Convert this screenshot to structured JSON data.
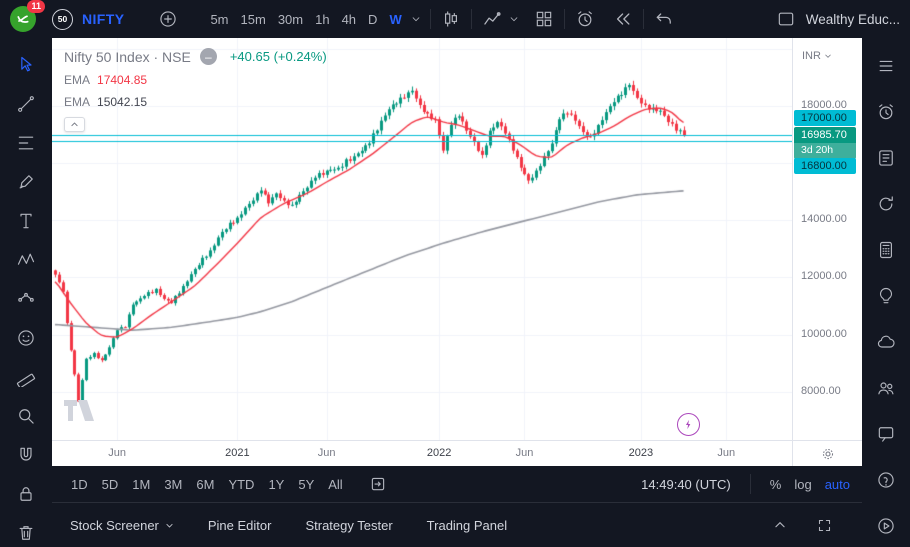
{
  "app": {
    "account_name": "Wealthy Educ...",
    "title_symbol": "NIFTY",
    "symbol_badge": "50",
    "logo_badge_count": "11"
  },
  "topbar": {
    "timeframes": [
      "5m",
      "15m",
      "30m",
      "1h",
      "4h",
      "D",
      "W"
    ],
    "active_timeframe": "W"
  },
  "left_toolbar": {
    "tools": [
      "cursor",
      "trend-line",
      "fib-retracement",
      "brush",
      "text",
      "xabcd-pattern",
      "forecast",
      "emoji",
      "ruler",
      "zoom",
      "magnet",
      "lock",
      "trash"
    ],
    "active_tool": "cursor"
  },
  "right_sidebar": {
    "panels": [
      "watchlist",
      "alerts",
      "hotlists",
      "refresh",
      "dom",
      "ideas",
      "chat-cloud",
      "community",
      "messages",
      "help",
      "play"
    ]
  },
  "legend": {
    "title": "Nifty 50 Index · NSE",
    "change_text": "+40.65 (+0.24%)",
    "hide_glyph": "–"
  },
  "price_axis": {
    "currency_label": "INR"
  },
  "bottom_toolbar": {
    "ranges": [
      "1D",
      "5D",
      "1M",
      "3M",
      "6M",
      "YTD",
      "1Y",
      "5Y",
      "All"
    ],
    "clock": "14:49:40 (UTC)",
    "percent_label": "%",
    "log_label": "log",
    "auto_label": "auto"
  },
  "bottom_panel": {
    "items": [
      {
        "label": "Stock Screener",
        "chevron": true
      },
      {
        "label": "Pine Editor",
        "chevron": false
      },
      {
        "label": "Strategy Tester",
        "chevron": false
      },
      {
        "label": "Trading Panel",
        "chevron": false
      }
    ]
  },
  "colors": {
    "accent_blue": "#2962ff",
    "up_green": "#089981",
    "down_red": "#f23645",
    "h_line": "#00bcd4",
    "toolbar_bg": "#131722",
    "chart_bg": "#ffffff",
    "boost_purple": "#ab47bc"
  },
  "chart_data": {
    "type": "candlestick",
    "symbol": "Nifty 50 Index",
    "exchange": "NSE",
    "interval": "W",
    "ylim": [
      6300,
      20400
    ],
    "weeks": 162,
    "step": 3.88,
    "x0": 3,
    "first_open": 12250,
    "up_color": "#089981",
    "down_color": "#f23645",
    "close_anchors": [
      [
        0,
        12100
      ],
      [
        2,
        11500
      ],
      [
        3,
        10400
      ],
      [
        5,
        8600
      ],
      [
        6,
        7650
      ],
      [
        8,
        9150
      ],
      [
        10,
        9350
      ],
      [
        12,
        9100
      ],
      [
        14,
        9550
      ],
      [
        16,
        10150
      ],
      [
        18,
        10250
      ],
      [
        20,
        11050
      ],
      [
        23,
        11350
      ],
      [
        26,
        11600
      ],
      [
        28,
        11250
      ],
      [
        30,
        11100
      ],
      [
        33,
        11700
      ],
      [
        36,
        12300
      ],
      [
        40,
        12950
      ],
      [
        43,
        13600
      ],
      [
        47,
        14100
      ],
      [
        49,
        14450
      ],
      [
        51,
        14700
      ],
      [
        53,
        15050
      ],
      [
        55,
        14600
      ],
      [
        57,
        14950
      ],
      [
        59,
        14700
      ],
      [
        61,
        14550
      ],
      [
        63,
        14900
      ],
      [
        65,
        15150
      ],
      [
        67,
        15500
      ],
      [
        70,
        15750
      ],
      [
        73,
        15850
      ],
      [
        77,
        16250
      ],
      [
        81,
        16700
      ],
      [
        84,
        17500
      ],
      [
        86,
        17900
      ],
      [
        88,
        18100
      ],
      [
        90,
        18300
      ],
      [
        92,
        18550
      ],
      [
        94,
        18050
      ],
      [
        96,
        17750
      ],
      [
        98,
        17550
      ],
      [
        100,
        16450
      ],
      [
        102,
        17350
      ],
      [
        104,
        17650
      ],
      [
        106,
        17150
      ],
      [
        108,
        16750
      ],
      [
        110,
        16300
      ],
      [
        112,
        17150
      ],
      [
        114,
        17450
      ],
      [
        116,
        17050
      ],
      [
        118,
        16450
      ],
      [
        120,
        15850
      ],
      [
        122,
        15400
      ],
      [
        124,
        15750
      ],
      [
        126,
        16250
      ],
      [
        128,
        16700
      ],
      [
        130,
        17550
      ],
      [
        132,
        17750
      ],
      [
        134,
        17500
      ],
      [
        136,
        17100
      ],
      [
        138,
        16950
      ],
      [
        140,
        17350
      ],
      [
        142,
        17800
      ],
      [
        144,
        18150
      ],
      [
        146,
        18400
      ],
      [
        148,
        18750
      ],
      [
        150,
        18300
      ],
      [
        152,
        18050
      ],
      [
        154,
        17950
      ],
      [
        156,
        17850
      ],
      [
        158,
        17450
      ],
      [
        160,
        17150
      ],
      [
        162,
        16985.7
      ]
    ],
    "ema_fast": {
      "label": "EMA",
      "current": "17404.85",
      "color": "#f23645",
      "anchors": [
        [
          0,
          11900
        ],
        [
          4,
          11100
        ],
        [
          8,
          10400
        ],
        [
          12,
          9950
        ],
        [
          16,
          9900
        ],
        [
          20,
          10200
        ],
        [
          25,
          10700
        ],
        [
          30,
          11150
        ],
        [
          36,
          11700
        ],
        [
          42,
          12500
        ],
        [
          47,
          13200
        ],
        [
          53,
          14100
        ],
        [
          59,
          14600
        ],
        [
          65,
          14950
        ],
        [
          70,
          15350
        ],
        [
          76,
          15800
        ],
        [
          82,
          16350
        ],
        [
          88,
          17000
        ],
        [
          92,
          17450
        ],
        [
          96,
          17650
        ],
        [
          100,
          17450
        ],
        [
          104,
          17350
        ],
        [
          108,
          17150
        ],
        [
          112,
          16950
        ],
        [
          116,
          16950
        ],
        [
          120,
          16650
        ],
        [
          124,
          16250
        ],
        [
          128,
          16200
        ],
        [
          132,
          16650
        ],
        [
          136,
          16900
        ],
        [
          140,
          17050
        ],
        [
          144,
          17300
        ],
        [
          148,
          17650
        ],
        [
          152,
          17900
        ],
        [
          156,
          17950
        ],
        [
          159,
          17800
        ],
        [
          162,
          17404.85
        ]
      ]
    },
    "ema_slow": {
      "label": "EMA",
      "current": "15042.15",
      "color": "#9598a1",
      "anchors": [
        [
          0,
          10350
        ],
        [
          10,
          10250
        ],
        [
          20,
          10150
        ],
        [
          30,
          10250
        ],
        [
          40,
          10450
        ],
        [
          47,
          10600
        ],
        [
          53,
          10800
        ],
        [
          61,
          11150
        ],
        [
          70,
          11650
        ],
        [
          80,
          12200
        ],
        [
          90,
          12750
        ],
        [
          100,
          13200
        ],
        [
          110,
          13600
        ],
        [
          120,
          13950
        ],
        [
          130,
          14300
        ],
        [
          140,
          14650
        ],
        [
          150,
          14900
        ],
        [
          162,
          15042.15
        ]
      ]
    },
    "horizontal_lines": [
      {
        "value": 17000,
        "label": "17000.00"
      },
      {
        "value": 16800,
        "label": "16800.00"
      }
    ],
    "last_price": {
      "value": 16985.7,
      "label": "16985.70",
      "countdown": "3d 20h"
    },
    "price_labels": [
      18000,
      14000,
      12000,
      10000,
      8000
    ],
    "grid_prices": [
      8000,
      10000,
      12000,
      14000,
      16000,
      18000,
      20000
    ],
    "time_ticks": [
      {
        "label": "Jun",
        "week": 16
      },
      {
        "label": "2021",
        "week": 47,
        "year": true
      },
      {
        "label": "Jun",
        "week": 70
      },
      {
        "label": "2022",
        "week": 99,
        "year": true
      },
      {
        "label": "Jun",
        "week": 121
      },
      {
        "label": "2023",
        "week": 151,
        "year": true
      },
      {
        "label": "Jun",
        "week": 173
      }
    ],
    "legend_position": "top-left",
    "grid": "faint"
  }
}
